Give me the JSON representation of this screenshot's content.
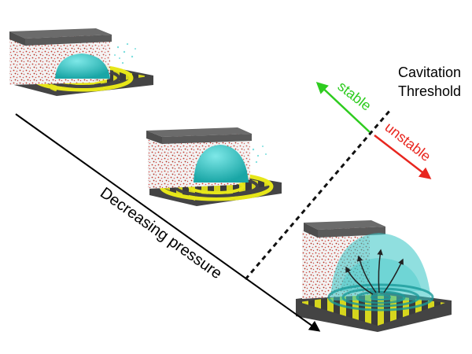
{
  "labels": {
    "cavitation_threshold_line1": "Cavitation",
    "cavitation_threshold_line2": "Threshold",
    "stable": "stable",
    "unstable": "unstable",
    "decreasing_pressure": "Decreasing pressure"
  },
  "colors": {
    "stable": "#2ecc1f",
    "unstable": "#e8261f",
    "threshold_line": "#111111",
    "pressure_arrow": "#000000",
    "liquid_red": "#c0392b",
    "bubble_cyan": "#33c2c2",
    "substrate_yellow": "#e6e619",
    "substrate_dark": "#555555",
    "wall_gray": "#5a5a5a"
  },
  "panels": [
    {
      "name": "low-pressure-stable-nanobubble",
      "state": "stable"
    },
    {
      "name": "medium-pressure-stable-nanobubble",
      "state": "stable"
    },
    {
      "name": "cavitating-unstable-nanobubble",
      "state": "unstable"
    }
  ]
}
